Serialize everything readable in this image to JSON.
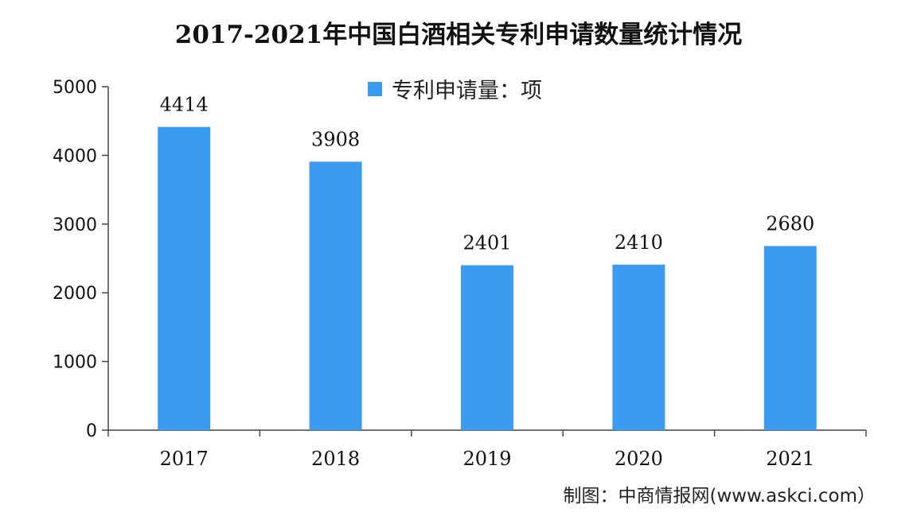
{
  "title": "2017-2021年中国白酒相关专利申请数量统计情况",
  "legend_label": "专利申请量：项",
  "source": "制图：中商情报网(www.askci.com）",
  "colors": {
    "bar": "#3a9cf0",
    "axis": "#444444"
  },
  "chart_data": {
    "type": "bar",
    "categories": [
      "2017",
      "2018",
      "2019",
      "2020",
      "2021"
    ],
    "series": [
      {
        "name": "专利申请量：项",
        "values": [
          4414,
          3908,
          2401,
          2410,
          2680
        ]
      }
    ],
    "data_labels": [
      "4414",
      "3908",
      "2401",
      "2410",
      "2680"
    ],
    "yticks": [
      "0",
      "1000",
      "2000",
      "3000",
      "4000",
      "5000"
    ],
    "ylim": [
      0,
      5000
    ],
    "grid": false,
    "legend_position": "top-center"
  }
}
